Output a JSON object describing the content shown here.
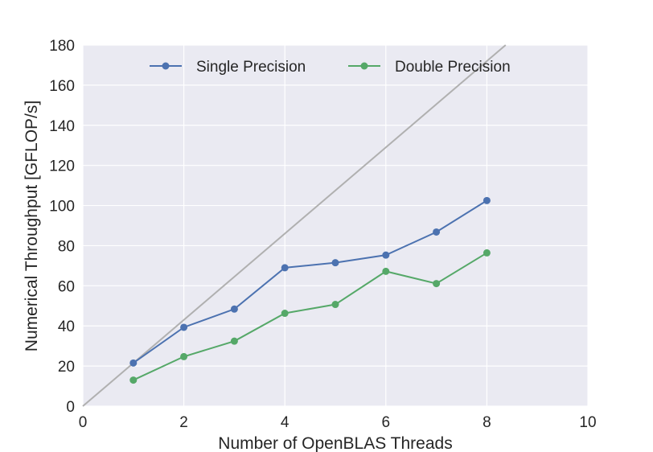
{
  "chart_data": {
    "type": "line",
    "xlabel": "Number of OpenBLAS Threads",
    "ylabel": "Numerical Throughput [GFLOP/s]",
    "xlim": [
      0,
      10
    ],
    "ylim": [
      0,
      180
    ],
    "xticks": [
      0,
      2,
      4,
      6,
      8,
      10
    ],
    "yticks": [
      0,
      20,
      40,
      60,
      80,
      100,
      120,
      140,
      160,
      180
    ],
    "grid": true,
    "legend_position": "top-center",
    "x": [
      1,
      2,
      3,
      4,
      5,
      6,
      7,
      8
    ],
    "series": [
      {
        "name": "Single Precision",
        "color": "#4c72b0",
        "values": [
          21.5,
          39.3,
          48.4,
          69.0,
          71.5,
          75.3,
          86.8,
          102.5
        ]
      },
      {
        "name": "Double Precision",
        "color": "#55a868",
        "values": [
          13.0,
          24.7,
          32.4,
          46.3,
          50.7,
          67.2,
          61.1,
          76.4
        ]
      }
    ],
    "reference_line": {
      "description": "linear scaling",
      "color": "#b0b0b0",
      "slope": 21.5
    },
    "background_color": "#eaeaf2"
  }
}
